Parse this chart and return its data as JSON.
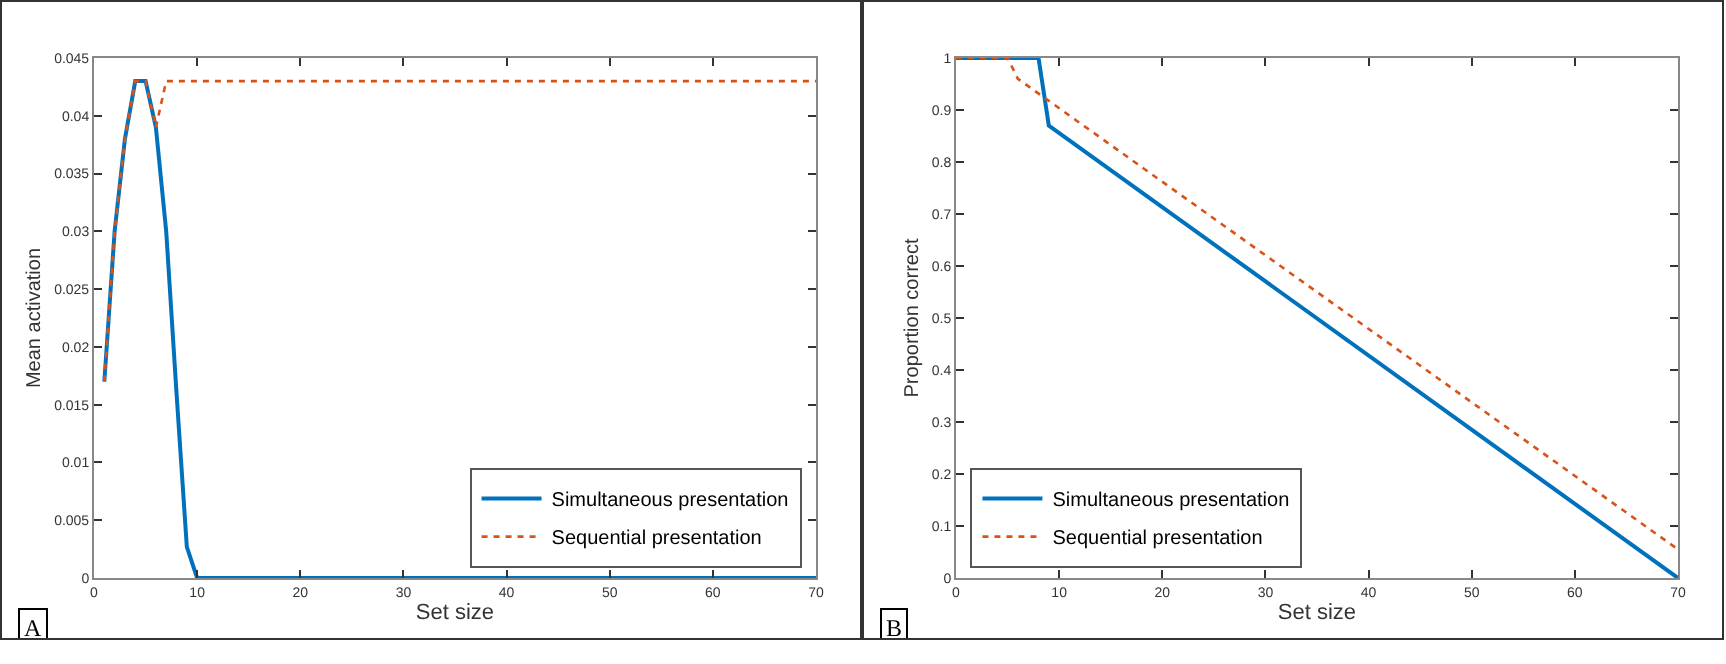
{
  "chart_data": [
    {
      "type": "line",
      "xlabel": "Set size",
      "ylabel": "Mean activation",
      "annotations": [
        "A"
      ],
      "xlim": [
        0,
        70
      ],
      "xticks": [
        0,
        10,
        20,
        30,
        40,
        50,
        60,
        70
      ],
      "ylim": [
        0,
        0.045
      ],
      "yticks": [
        0,
        0.005,
        0.01,
        0.015,
        0.02,
        0.025,
        0.03,
        0.035,
        0.04,
        0.045
      ],
      "grid": false,
      "legend": "bottom right",
      "series": [
        {
          "name": "Simultaneous presentation",
          "color": "#0072bd",
          "line_style": "solid",
          "x": [
            1,
            2,
            3,
            4,
            5,
            6,
            7,
            8,
            9,
            10,
            70
          ],
          "values": [
            0.017,
            0.03,
            0.038,
            0.043,
            0.043,
            0.039,
            0.03,
            0.016,
            0.0027,
            0,
            0
          ]
        },
        {
          "name": "Sequential presentation",
          "color": "#d95319",
          "line_style": "dotted",
          "x": [
            1,
            2,
            3,
            4,
            5,
            6,
            7,
            70
          ],
          "values": [
            0.017,
            0.03,
            0.038,
            0.043,
            0.043,
            0.039,
            0.043,
            0.043
          ]
        }
      ]
    },
    {
      "type": "line",
      "xlabel": "Set size",
      "ylabel": "Proportion correct",
      "annotations": [
        "B"
      ],
      "xlim": [
        0,
        70
      ],
      "xticks": [
        0,
        10,
        20,
        30,
        40,
        50,
        60,
        70
      ],
      "ylim": [
        0,
        1
      ],
      "yticks": [
        0,
        0.1,
        0.2,
        0.3,
        0.4,
        0.5,
        0.6,
        0.7,
        0.8,
        0.9,
        1
      ],
      "grid": false,
      "legend": "bottom left",
      "series": [
        {
          "name": "Simultaneous presentation",
          "color": "#0072bd",
          "line_style": "solid",
          "x": [
            0,
            8,
            9,
            70
          ],
          "values": [
            1,
            1,
            0.87,
            0
          ]
        },
        {
          "name": "Sequential presentation",
          "color": "#d95319",
          "line_style": "dotted",
          "x": [
            0,
            5,
            6,
            70
          ],
          "values": [
            1,
            1,
            0.96,
            0.055
          ]
        }
      ]
    }
  ]
}
